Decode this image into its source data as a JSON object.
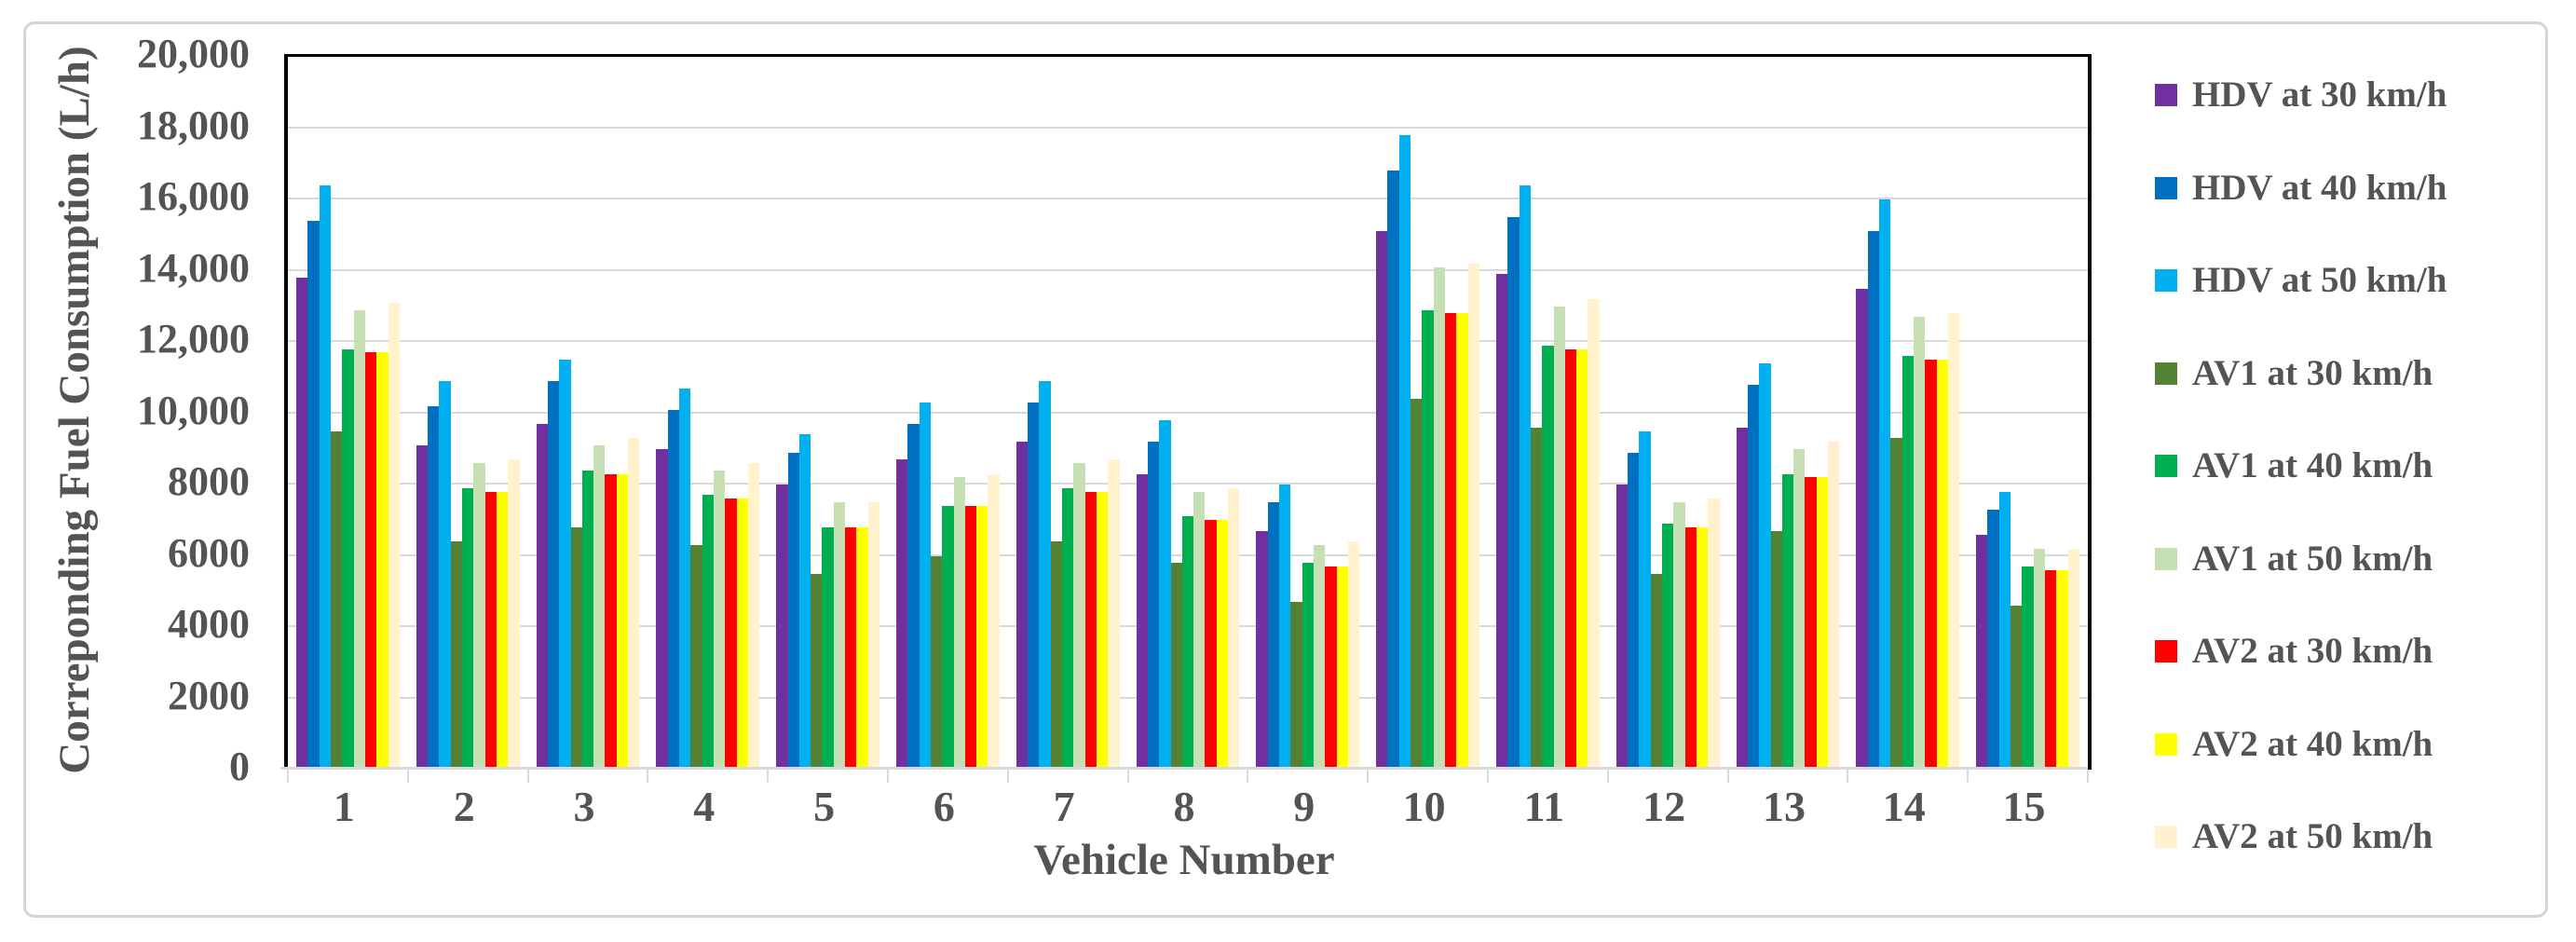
{
  "figure": {
    "background": "#ffffff",
    "card_border_color": "#d4d4d4",
    "axis_text_color": "#545454",
    "gridline_color": "#d9d9d9",
    "plot_border_color": "#000000",
    "baseline_color": "#d9d9d9"
  },
  "chart_data": {
    "type": "bar",
    "title": "",
    "xlabel": "Vehicle Number",
    "ylabel": "Correponding Fuel Consumption (L/h)",
    "categories": [
      "1",
      "2",
      "3",
      "4",
      "5",
      "6",
      "7",
      "8",
      "9",
      "10",
      "11",
      "12",
      "13",
      "14",
      "15"
    ],
    "ylim": [
      0,
      20000
    ],
    "ytick_step": 2000,
    "ytick_labels": [
      "0",
      "2000",
      "4000",
      "6000",
      "8000",
      "10,000",
      "12,000",
      "14,000",
      "16,000",
      "18,000",
      "20,000"
    ],
    "grid": "horizontal",
    "legend_position": "right",
    "series": [
      {
        "name": "HDV at 30 km/h",
        "color": "#7030A0",
        "values": [
          13800,
          9100,
          9700,
          9000,
          8000,
          8700,
          9200,
          8300,
          6700,
          15100,
          13900,
          8000,
          9600,
          13500,
          6600
        ]
      },
      {
        "name": "HDV at 40 km/h",
        "color": "#0070C0",
        "values": [
          15400,
          10200,
          10900,
          10100,
          8900,
          9700,
          10300,
          9200,
          7500,
          16800,
          15500,
          8900,
          10800,
          15100,
          7300
        ]
      },
      {
        "name": "HDV at 50 km/h",
        "color": "#00B0F0",
        "values": [
          16400,
          10900,
          11500,
          10700,
          9400,
          10300,
          10900,
          9800,
          8000,
          17800,
          16400,
          9500,
          11400,
          16000,
          7800
        ]
      },
      {
        "name": "AV1 at 30 km/h",
        "color": "#548235",
        "values": [
          9500,
          6400,
          6800,
          6300,
          5500,
          6000,
          6400,
          5800,
          4700,
          10400,
          9600,
          5500,
          6700,
          9300,
          4600
        ]
      },
      {
        "name": "AV1 at 40 km/h",
        "color": "#00B050",
        "values": [
          11800,
          7900,
          8400,
          7700,
          6800,
          7400,
          7900,
          7100,
          5800,
          12900,
          11900,
          6900,
          8300,
          11600,
          5700
        ]
      },
      {
        "name": "AV1 at 50 km/h",
        "color": "#C6E0B4",
        "values": [
          12900,
          8600,
          9100,
          8400,
          7500,
          8200,
          8600,
          7800,
          6300,
          14100,
          13000,
          7500,
          9000,
          12700,
          6200
        ]
      },
      {
        "name": "AV2 at 30 km/h",
        "color": "#FF0000",
        "values": [
          11700,
          7800,
          8300,
          7600,
          6800,
          7400,
          7800,
          7000,
          5700,
          12800,
          11800,
          6800,
          8200,
          11500,
          5600
        ]
      },
      {
        "name": "AV2 at 40 km/h",
        "color": "#FFFF00",
        "values": [
          11700,
          7800,
          8300,
          7600,
          6800,
          7400,
          7800,
          7000,
          5700,
          12800,
          11800,
          6800,
          8200,
          11500,
          5600
        ]
      },
      {
        "name": "AV2 at 50 km/h",
        "color": "#FFF2CC",
        "values": [
          13100,
          8700,
          9300,
          8600,
          7500,
          8300,
          8700,
          7900,
          6400,
          14200,
          13200,
          7600,
          9200,
          12800,
          6200
        ]
      }
    ]
  }
}
